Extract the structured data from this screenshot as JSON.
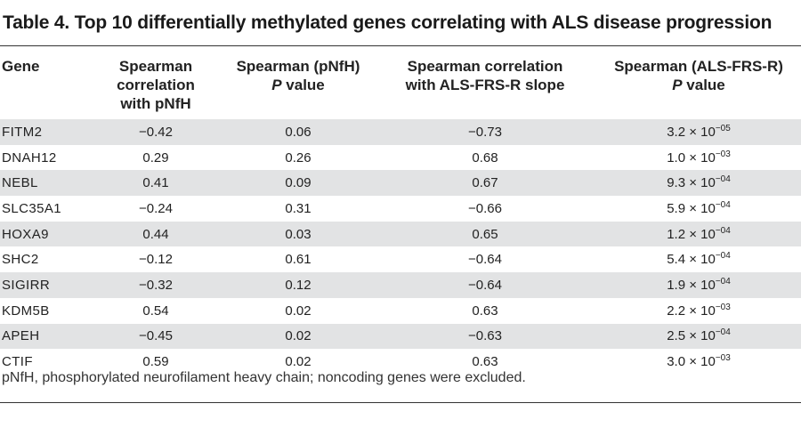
{
  "title": "Table 4. Top 10 differentially methylated genes correlating with ALS disease progression",
  "headers": [
    {
      "line1": "Gene",
      "line2": "",
      "line2_italic": "",
      "line2_rest": ""
    },
    {
      "line1": "Spearman correlation",
      "line2": "with pNfH",
      "line2_italic": "",
      "line2_rest": ""
    },
    {
      "line1": "Spearman (pNfH)",
      "line2": "",
      "line2_italic": "P",
      "line2_rest": " value"
    },
    {
      "line1": "Spearman correlation",
      "line2": "with ALS-FRS-R slope",
      "line2_italic": "",
      "line2_rest": ""
    },
    {
      "line1": "Spearman (ALS-FRS-R)",
      "line2": "",
      "line2_italic": "P",
      "line2_rest": " value"
    }
  ],
  "rows": [
    {
      "gene": "FITM2",
      "corr_pnfh": "−0.42",
      "p_pnfh": "0.06",
      "corr_alsfrs": "−0.73",
      "p_base": "3.2 × 10",
      "p_exp": "−05"
    },
    {
      "gene": "DNAH12",
      "corr_pnfh": "0.29",
      "p_pnfh": "0.26",
      "corr_alsfrs": "0.68",
      "p_base": "1.0 × 10",
      "p_exp": "−03"
    },
    {
      "gene": "NEBL",
      "corr_pnfh": "0.41",
      "p_pnfh": "0.09",
      "corr_alsfrs": "0.67",
      "p_base": "9.3 × 10",
      "p_exp": "−04"
    },
    {
      "gene": "SLC35A1",
      "corr_pnfh": "−0.24",
      "p_pnfh": "0.31",
      "corr_alsfrs": "−0.66",
      "p_base": "5.9 × 10",
      "p_exp": "−04"
    },
    {
      "gene": "HOXA9",
      "corr_pnfh": "0.44",
      "p_pnfh": "0.03",
      "corr_alsfrs": "0.65",
      "p_base": "1.2 × 10",
      "p_exp": "−04"
    },
    {
      "gene": "SHC2",
      "corr_pnfh": "−0.12",
      "p_pnfh": "0.61",
      "corr_alsfrs": "−0.64",
      "p_base": "5.4 × 10",
      "p_exp": "−04"
    },
    {
      "gene": "SIGIRR",
      "corr_pnfh": "−0.32",
      "p_pnfh": "0.12",
      "corr_alsfrs": "−0.64",
      "p_base": "1.9 × 10",
      "p_exp": "−04"
    },
    {
      "gene": "KDM5B",
      "corr_pnfh": "0.54",
      "p_pnfh": "0.02",
      "corr_alsfrs": "0.63",
      "p_base": "2.2 × 10",
      "p_exp": "−03"
    },
    {
      "gene": "APEH",
      "corr_pnfh": "−0.45",
      "p_pnfh": "0.02",
      "corr_alsfrs": "−0.63",
      "p_base": "2.5 × 10",
      "p_exp": "−04"
    },
    {
      "gene": "CTIF",
      "corr_pnfh": "0.59",
      "p_pnfh": "0.02",
      "corr_alsfrs": "0.63",
      "p_base": "3.0 × 10",
      "p_exp": "−03"
    }
  ],
  "footnote": "pNfH, phosphorylated neurofilament heavy chain; noncoding genes were excluded.",
  "colors": {
    "row_shade": "#e2e3e4",
    "rule": "#333333",
    "text": "#222222"
  }
}
